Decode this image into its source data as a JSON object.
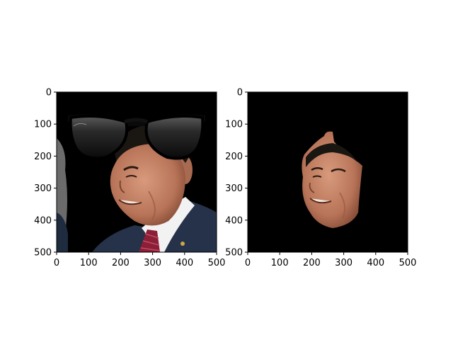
{
  "figure": {
    "panels": [
      {
        "name": "left",
        "content": "face-photo-with-sunglasses-overlay",
        "x_ticks": [
          "0",
          "100",
          "200",
          "300",
          "400",
          "500"
        ],
        "y_ticks": [
          "0",
          "100",
          "200",
          "300",
          "400",
          "500"
        ]
      },
      {
        "name": "right",
        "content": "masked-face-region-on-black",
        "x_ticks": [
          "0",
          "100",
          "200",
          "300",
          "400",
          "500"
        ],
        "y_ticks": [
          "0",
          "100",
          "200",
          "300",
          "400",
          "500"
        ]
      }
    ],
    "axis_range": {
      "x": [
        0,
        500
      ],
      "y": [
        0,
        500
      ]
    },
    "colors": {
      "background": "#000000",
      "skin": "#c8876a",
      "hair": "#1a1612",
      "suit": "#25324a",
      "tie": "#8a1f35",
      "lens": "#2a2a2a"
    }
  }
}
